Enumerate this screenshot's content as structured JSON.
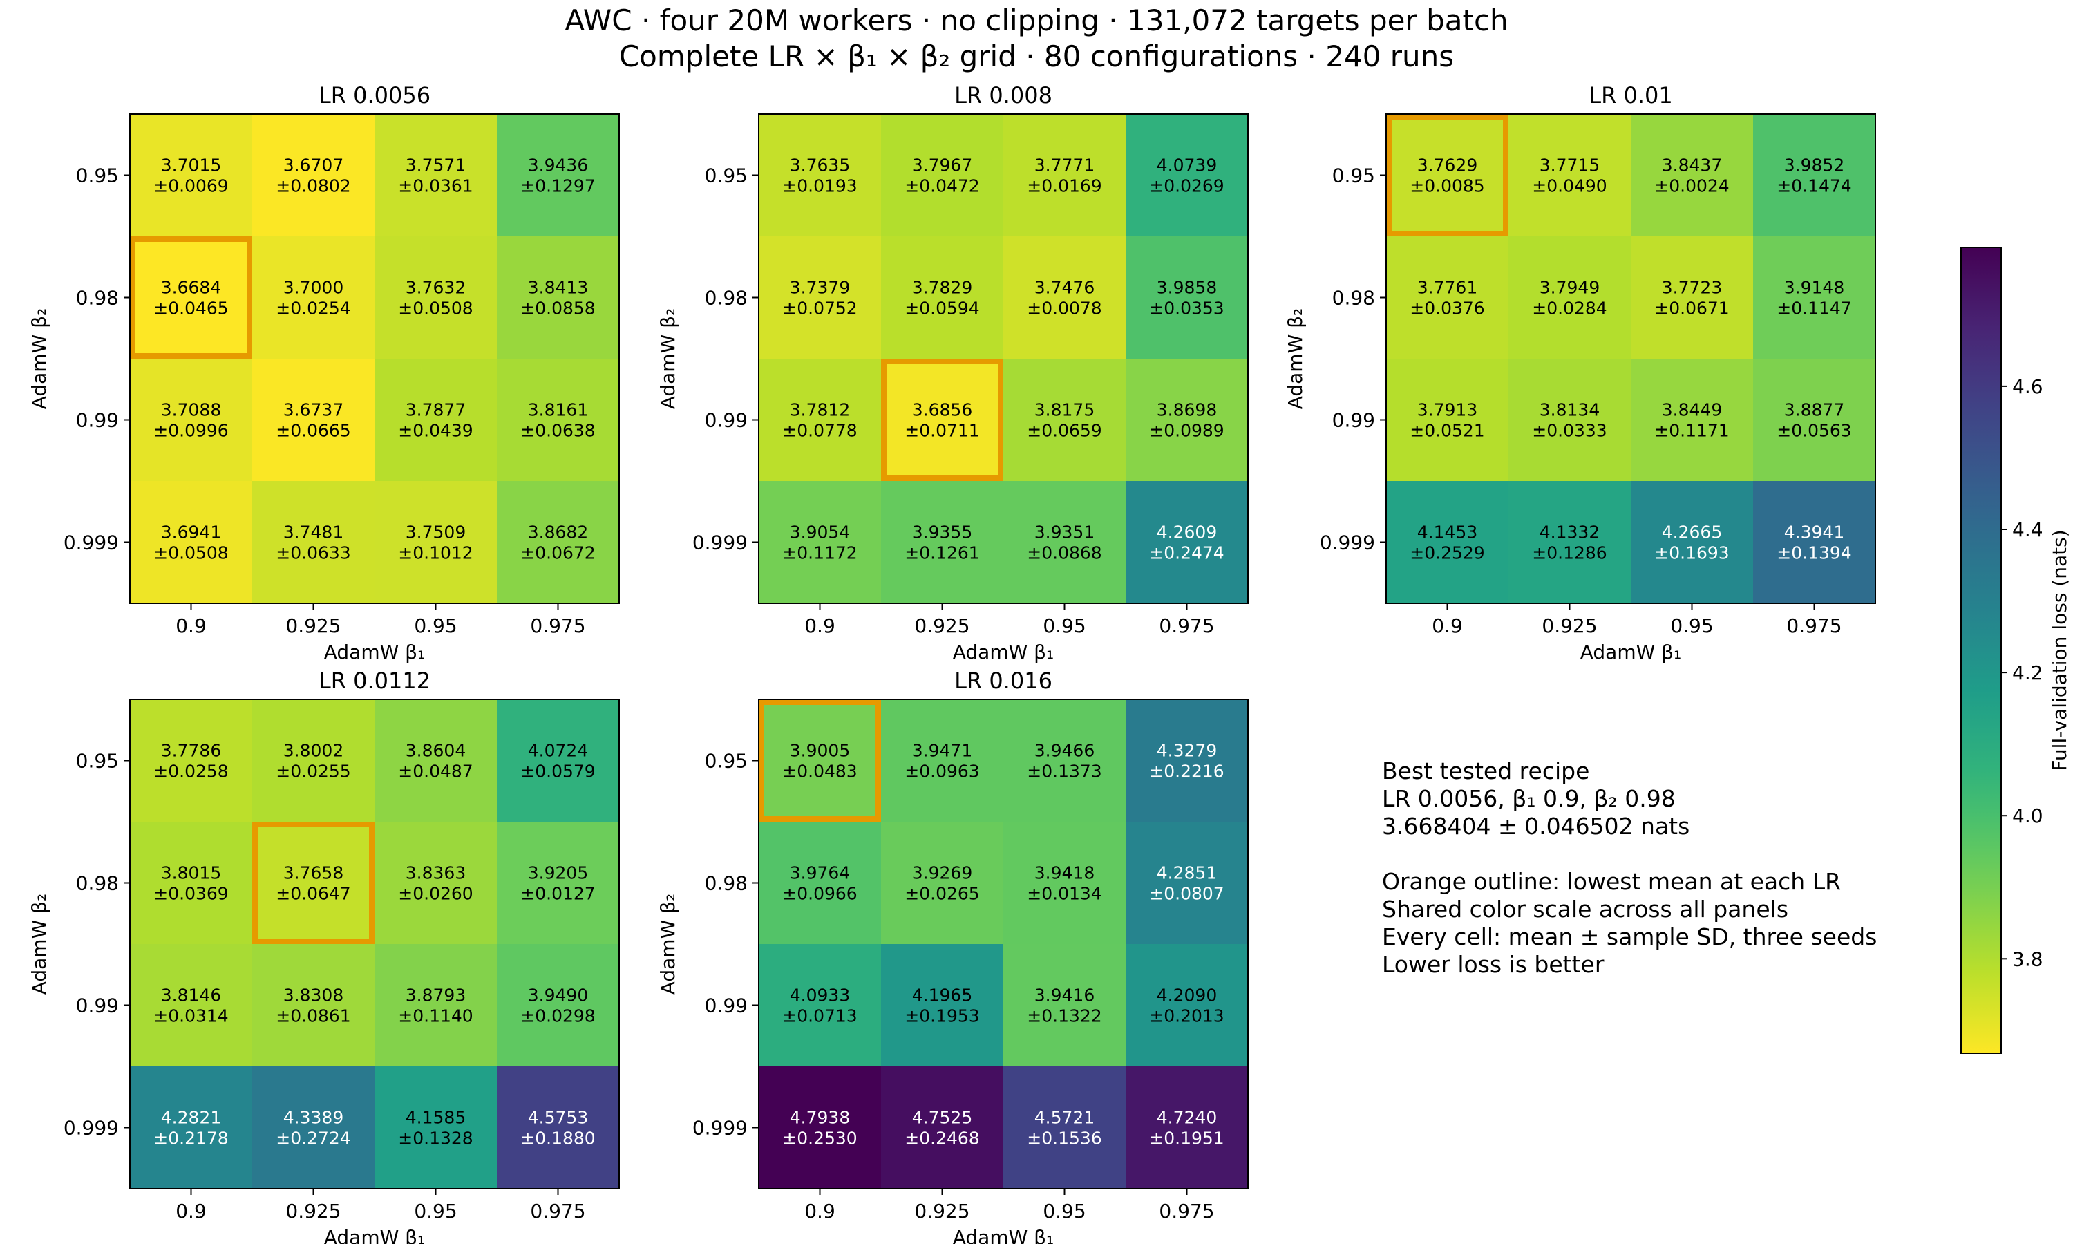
{
  "figure": {
    "title_line1": "AWC · four 20M workers · no clipping · 131,072 targets per batch",
    "title_line2": "Complete LR × β₁ × β₂ grid · 80 configurations · 240 runs"
  },
  "notes": {
    "best_heading": "Best tested recipe",
    "best_recipe": "LR 0.0056, β₁ 0.9, β₂ 0.98",
    "best_value": "3.668404 ± 0.046502 nats",
    "line1": "Orange outline: lowest mean at each LR",
    "line2": "Shared color scale across all panels",
    "line3": "Every cell: mean ± sample SD, three seeds",
    "line4": "Lower loss is better"
  },
  "colors": {
    "highlight": "#e69a00",
    "colormap": "viridis_r",
    "text_dark": "#000000",
    "text_light": "#ffffff"
  },
  "chart_data": {
    "type": "heatmap",
    "xlabel": "AdamW β₁",
    "ylabel": "AdamW β₂",
    "x_categories": [
      "0.9",
      "0.925",
      "0.95",
      "0.975"
    ],
    "y_categories": [
      "0.95",
      "0.98",
      "0.99",
      "0.999"
    ],
    "colorbar": {
      "label": "Full-validation loss (nats)",
      "vmin": 3.668,
      "vmax": 4.794,
      "ticks": [
        "3.8",
        "4.0",
        "4.2",
        "4.4",
        "4.6"
      ],
      "tick_values": [
        3.8,
        4.0,
        4.2,
        4.4,
        4.6
      ]
    },
    "panels": [
      {
        "title": "LR 0.0056",
        "means": [
          [
            3.7015,
            3.6707,
            3.7571,
            3.9436
          ],
          [
            3.6684,
            3.7,
            3.7632,
            3.8413
          ],
          [
            3.7088,
            3.6737,
            3.7877,
            3.8161
          ],
          [
            3.6941,
            3.7481,
            3.7509,
            3.8682
          ]
        ],
        "sds": [
          [
            "±0.0069",
            "±0.0802",
            "±0.0361",
            "±0.1297"
          ],
          [
            "±0.0465",
            "±0.0254",
            "±0.0508",
            "±0.0858"
          ],
          [
            "±0.0996",
            "±0.0665",
            "±0.0439",
            "±0.0638"
          ],
          [
            "±0.0508",
            "±0.0633",
            "±0.1012",
            "±0.0672"
          ]
        ],
        "best": [
          1,
          0
        ]
      },
      {
        "title": "LR 0.008",
        "means": [
          [
            3.7635,
            3.7967,
            3.7771,
            4.0739
          ],
          [
            3.7379,
            3.7829,
            3.7476,
            3.9858
          ],
          [
            3.7812,
            3.6856,
            3.8175,
            3.8698
          ],
          [
            3.9054,
            3.9355,
            3.9351,
            4.2609
          ]
        ],
        "sds": [
          [
            "±0.0193",
            "±0.0472",
            "±0.0169",
            "±0.0269"
          ],
          [
            "±0.0752",
            "±0.0594",
            "±0.0078",
            "±0.0353"
          ],
          [
            "±0.0778",
            "±0.0711",
            "±0.0659",
            "±0.0989"
          ],
          [
            "±0.1172",
            "±0.1261",
            "±0.0868",
            "±0.2474"
          ]
        ],
        "best": [
          2,
          1
        ]
      },
      {
        "title": "LR 0.01",
        "means": [
          [
            3.7629,
            3.7715,
            3.8437,
            3.9852
          ],
          [
            3.7761,
            3.7949,
            3.7723,
            3.9148
          ],
          [
            3.7913,
            3.8134,
            3.8449,
            3.8877
          ],
          [
            4.1453,
            4.1332,
            4.2665,
            4.3941
          ]
        ],
        "sds": [
          [
            "±0.0085",
            "±0.0490",
            "±0.0024",
            "±0.1474"
          ],
          [
            "±0.0376",
            "±0.0284",
            "±0.0671",
            "±0.1147"
          ],
          [
            "±0.0521",
            "±0.0333",
            "±0.1171",
            "±0.0563"
          ],
          [
            "±0.2529",
            "±0.1286",
            "±0.1693",
            "±0.1394"
          ]
        ],
        "best": [
          0,
          0
        ]
      },
      {
        "title": "LR 0.0112",
        "means": [
          [
            3.7786,
            3.8002,
            3.8604,
            4.0724
          ],
          [
            3.8015,
            3.7658,
            3.8363,
            3.9205
          ],
          [
            3.8146,
            3.8308,
            3.8793,
            3.949
          ],
          [
            4.2821,
            4.3389,
            4.1585,
            4.5753
          ]
        ],
        "sds": [
          [
            "±0.0258",
            "±0.0255",
            "±0.0487",
            "±0.0579"
          ],
          [
            "±0.0369",
            "±0.0647",
            "±0.0260",
            "±0.0127"
          ],
          [
            "±0.0314",
            "±0.0861",
            "±0.1140",
            "±0.0298"
          ],
          [
            "±0.2178",
            "±0.2724",
            "±0.1328",
            "±0.1880"
          ]
        ],
        "best": [
          1,
          1
        ]
      },
      {
        "title": "LR 0.016",
        "means": [
          [
            3.9005,
            3.9471,
            3.9466,
            4.3279
          ],
          [
            3.9764,
            3.9269,
            3.9418,
            4.2851
          ],
          [
            4.0933,
            4.1965,
            3.9416,
            4.209
          ],
          [
            4.7938,
            4.7525,
            4.5721,
            4.724
          ]
        ],
        "sds": [
          [
            "±0.0483",
            "±0.0963",
            "±0.1373",
            "±0.2216"
          ],
          [
            "±0.0966",
            "±0.0265",
            "±0.0134",
            "±0.0807"
          ],
          [
            "±0.0713",
            "±0.1953",
            "±0.1322",
            "±0.2013"
          ],
          [
            "±0.2530",
            "±0.2468",
            "±0.1536",
            "±0.1951"
          ]
        ],
        "best": [
          0,
          0
        ]
      }
    ]
  }
}
